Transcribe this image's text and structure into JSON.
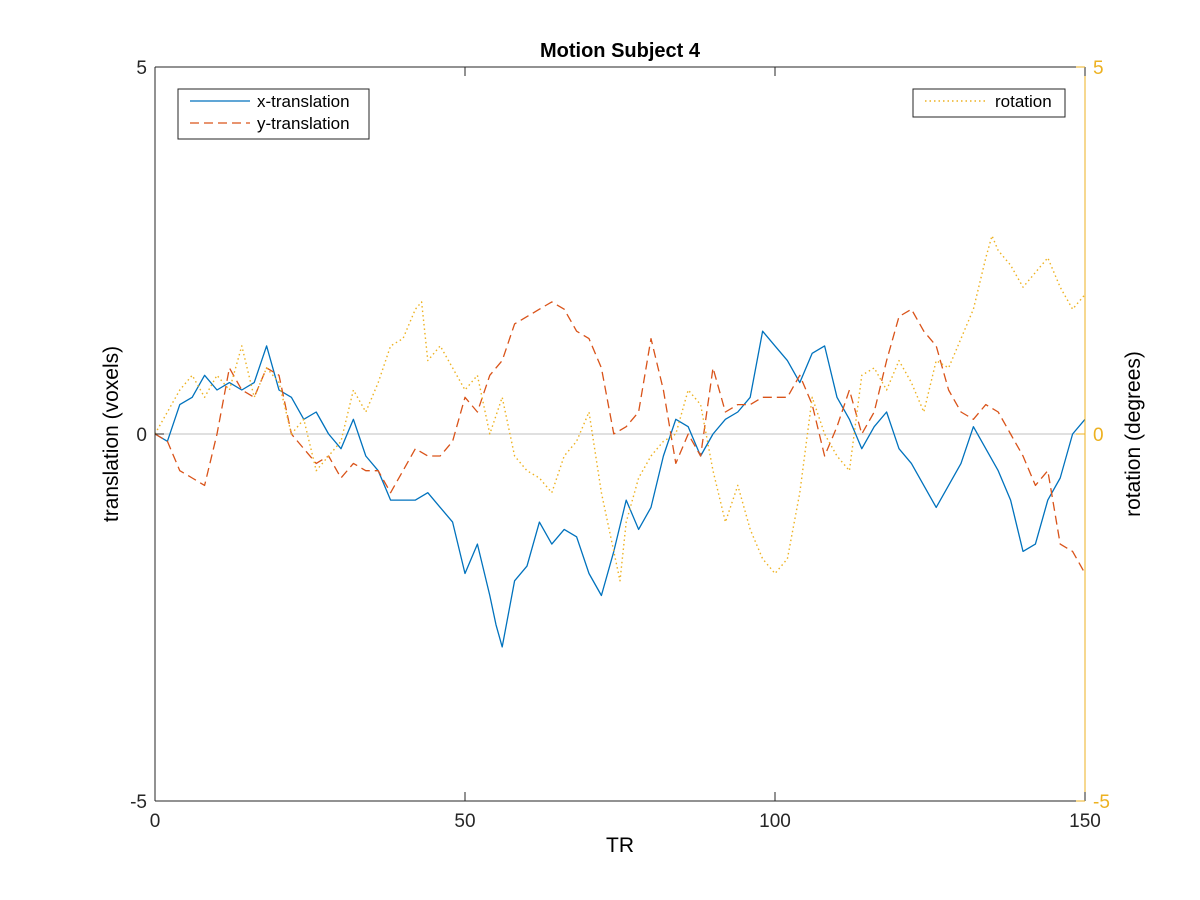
{
  "chart_data": {
    "type": "line",
    "title": "Motion Subject 4",
    "xlabel": "TR",
    "ylabel_left": "translation (voxels)",
    "ylabel_right": "rotation (degrees)",
    "xlim": [
      0,
      150
    ],
    "ylim_left": [
      -5,
      5
    ],
    "ylim_right": [
      -5,
      5
    ],
    "x_ticks": [
      0,
      50,
      100,
      150
    ],
    "y_ticks_left": [
      -5,
      0,
      5
    ],
    "y_ticks_right": [
      -5,
      0,
      5
    ],
    "zero_line": true,
    "grid": false,
    "legend_left": {
      "position": "top-left",
      "entries": [
        "x-translation",
        "y-translation"
      ]
    },
    "legend_right": {
      "position": "top-right",
      "entries": [
        "rotation"
      ]
    },
    "colors": {
      "x_translation": "#0072BD",
      "y_translation": "#D95319",
      "rotation": "#EDB120",
      "right_axis": "#EDB120",
      "zero_line": "#C0C0C0"
    },
    "series": [
      {
        "name": "x-translation",
        "axis": "left",
        "style": "solid",
        "x": [
          0,
          2,
          4,
          6,
          8,
          10,
          12,
          14,
          16,
          18,
          20,
          22,
          24,
          26,
          28,
          30,
          32,
          34,
          36,
          38,
          40,
          42,
          44,
          46,
          48,
          50,
          52,
          54,
          55,
          56,
          58,
          60,
          62,
          64,
          66,
          68,
          70,
          72,
          74,
          76,
          78,
          80,
          82,
          84,
          86,
          88,
          90,
          92,
          94,
          96,
          98,
          100,
          102,
          104,
          106,
          108,
          110,
          112,
          114,
          116,
          118,
          120,
          122,
          124,
          126,
          128,
          130,
          132,
          134,
          136,
          138,
          140,
          142,
          144,
          146,
          148,
          150
        ],
        "values": [
          0.0,
          -0.1,
          0.4,
          0.5,
          0.8,
          0.6,
          0.7,
          0.6,
          0.7,
          1.2,
          0.6,
          0.5,
          0.2,
          0.3,
          0.0,
          -0.2,
          0.2,
          -0.3,
          -0.5,
          -0.9,
          -0.9,
          -0.9,
          -0.8,
          -1.0,
          -1.2,
          -1.9,
          -1.5,
          -2.2,
          -2.6,
          -2.9,
          -2.0,
          -1.8,
          -1.2,
          -1.5,
          -1.3,
          -1.4,
          -1.9,
          -2.2,
          -1.6,
          -0.9,
          -1.3,
          -1.0,
          -0.3,
          0.2,
          0.1,
          -0.3,
          0.0,
          0.2,
          0.3,
          0.5,
          1.4,
          1.2,
          1.0,
          0.7,
          1.1,
          1.2,
          0.5,
          0.2,
          -0.2,
          0.1,
          0.3,
          -0.2,
          -0.4,
          -0.7,
          -1.0,
          -0.7,
          -0.4,
          0.1,
          -0.2,
          -0.5,
          -0.9,
          -1.6,
          -1.5,
          -0.9,
          -0.6,
          0.0,
          0.2
        ]
      },
      {
        "name": "y-translation",
        "axis": "left",
        "style": "dashed",
        "x": [
          0,
          2,
          4,
          6,
          8,
          10,
          12,
          14,
          16,
          18,
          20,
          22,
          24,
          26,
          28,
          30,
          32,
          34,
          36,
          38,
          40,
          42,
          44,
          46,
          48,
          50,
          52,
          54,
          56,
          58,
          60,
          62,
          64,
          66,
          68,
          70,
          72,
          74,
          76,
          78,
          80,
          82,
          84,
          86,
          88,
          90,
          92,
          94,
          96,
          98,
          100,
          102,
          104,
          106,
          108,
          110,
          112,
          114,
          116,
          118,
          120,
          122,
          124,
          126,
          128,
          130,
          132,
          134,
          136,
          138,
          140,
          142,
          144,
          146,
          148,
          150
        ],
        "values": [
          0.0,
          -0.1,
          -0.5,
          -0.6,
          -0.7,
          0.0,
          0.9,
          0.6,
          0.5,
          0.9,
          0.8,
          0.0,
          -0.2,
          -0.4,
          -0.3,
          -0.6,
          -0.4,
          -0.5,
          -0.5,
          -0.8,
          -0.5,
          -0.2,
          -0.3,
          -0.3,
          -0.1,
          0.5,
          0.3,
          0.8,
          1.0,
          1.5,
          1.6,
          1.7,
          1.8,
          1.7,
          1.4,
          1.3,
          0.9,
          0.0,
          0.1,
          0.3,
          1.3,
          0.6,
          -0.4,
          0.0,
          -0.3,
          0.9,
          0.3,
          0.4,
          0.4,
          0.5,
          0.5,
          0.5,
          0.8,
          0.4,
          -0.3,
          0.1,
          0.6,
          0.0,
          0.3,
          1.0,
          1.6,
          1.7,
          1.4,
          1.2,
          0.6,
          0.3,
          0.2,
          0.4,
          0.3,
          0.0,
          -0.3,
          -0.7,
          -0.5,
          -1.5,
          -1.6,
          -1.9
        ]
      },
      {
        "name": "rotation",
        "axis": "right",
        "style": "dotted",
        "x": [
          0,
          2,
          4,
          6,
          8,
          10,
          12,
          14,
          16,
          18,
          20,
          22,
          24,
          26,
          28,
          30,
          32,
          34,
          36,
          38,
          40,
          42,
          43,
          44,
          46,
          48,
          50,
          52,
          54,
          56,
          58,
          60,
          62,
          64,
          66,
          68,
          70,
          72,
          74,
          75,
          76,
          78,
          80,
          82,
          84,
          86,
          88,
          90,
          92,
          94,
          96,
          98,
          100,
          102,
          104,
          106,
          108,
          110,
          112,
          114,
          116,
          118,
          120,
          122,
          124,
          126,
          128,
          130,
          132,
          134,
          135,
          136,
          138,
          140,
          142,
          144,
          146,
          148,
          150
        ],
        "values": [
          0.0,
          0.3,
          0.6,
          0.8,
          0.5,
          0.8,
          0.6,
          1.2,
          0.5,
          0.9,
          0.7,
          0.0,
          0.2,
          -0.5,
          -0.3,
          -0.1,
          0.6,
          0.3,
          0.7,
          1.2,
          1.3,
          1.7,
          1.8,
          1.0,
          1.2,
          0.9,
          0.6,
          0.8,
          0.0,
          0.5,
          -0.3,
          -0.5,
          -0.6,
          -0.8,
          -0.3,
          -0.1,
          0.3,
          -0.8,
          -1.6,
          -2.0,
          -1.2,
          -0.6,
          -0.3,
          -0.1,
          0.0,
          0.6,
          0.4,
          -0.5,
          -1.2,
          -0.7,
          -1.3,
          -1.7,
          -1.9,
          -1.7,
          -0.8,
          0.5,
          0.0,
          -0.3,
          -0.5,
          0.8,
          0.9,
          0.6,
          1.0,
          0.7,
          0.3,
          1.0,
          0.9,
          1.3,
          1.7,
          2.4,
          2.7,
          2.5,
          2.3,
          2.0,
          2.2,
          2.4,
          2.0,
          1.7,
          1.9
        ]
      }
    ]
  }
}
